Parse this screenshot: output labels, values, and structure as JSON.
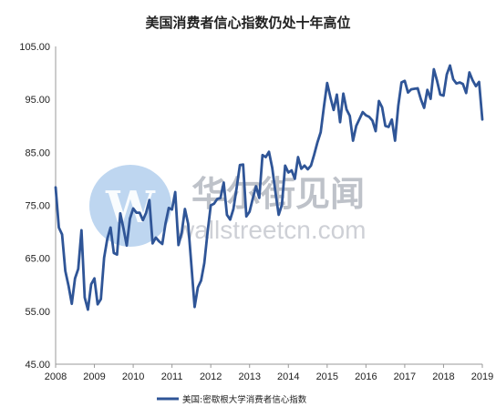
{
  "chart_data": {
    "type": "line",
    "title": "美国消费者信心指数仍处十年高位",
    "xlabel": "",
    "ylabel": "",
    "x_ticks": [
      "2008",
      "2009",
      "2010",
      "2011",
      "2012",
      "2013",
      "2014",
      "2015",
      "2016",
      "2017",
      "2018",
      "2019"
    ],
    "xlim": [
      2008,
      2019
    ],
    "y_ticks": [
      "105.00",
      "95.00",
      "85.00",
      "75.00",
      "65.00",
      "55.00",
      "45.00"
    ],
    "ylim": [
      45,
      105
    ],
    "grid": false,
    "legend_position": "bottom",
    "series": [
      {
        "name": "美国:密歇根大学消费者信心指数",
        "color": "#2f5597",
        "x": [
          "2008-01",
          "2008-02",
          "2008-03",
          "2008-04",
          "2008-05",
          "2008-06",
          "2008-07",
          "2008-08",
          "2008-09",
          "2008-10",
          "2008-11",
          "2008-12",
          "2009-01",
          "2009-02",
          "2009-03",
          "2009-04",
          "2009-05",
          "2009-06",
          "2009-07",
          "2009-08",
          "2009-09",
          "2009-10",
          "2009-11",
          "2009-12",
          "2010-01",
          "2010-02",
          "2010-03",
          "2010-04",
          "2010-05",
          "2010-06",
          "2010-07",
          "2010-08",
          "2010-09",
          "2010-10",
          "2010-11",
          "2010-12",
          "2011-01",
          "2011-02",
          "2011-03",
          "2011-04",
          "2011-05",
          "2011-06",
          "2011-07",
          "2011-08",
          "2011-09",
          "2011-10",
          "2011-11",
          "2011-12",
          "2012-01",
          "2012-02",
          "2012-03",
          "2012-04",
          "2012-05",
          "2012-06",
          "2012-07",
          "2012-08",
          "2012-09",
          "2012-10",
          "2012-11",
          "2012-12",
          "2013-01",
          "2013-02",
          "2013-03",
          "2013-04",
          "2013-05",
          "2013-06",
          "2013-07",
          "2013-08",
          "2013-09",
          "2013-10",
          "2013-11",
          "2013-12",
          "2014-01",
          "2014-02",
          "2014-03",
          "2014-04",
          "2014-05",
          "2014-06",
          "2014-07",
          "2014-08",
          "2014-09",
          "2014-10",
          "2014-11",
          "2014-12",
          "2015-01",
          "2015-02",
          "2015-03",
          "2015-04",
          "2015-05",
          "2015-06",
          "2015-07",
          "2015-08",
          "2015-09",
          "2015-10",
          "2015-11",
          "2015-12",
          "2016-01",
          "2016-02",
          "2016-03",
          "2016-04",
          "2016-05",
          "2016-06",
          "2016-07",
          "2016-08",
          "2016-09",
          "2016-10",
          "2016-11",
          "2016-12",
          "2017-01",
          "2017-02",
          "2017-03",
          "2017-04",
          "2017-05",
          "2017-06",
          "2017-07",
          "2017-08",
          "2017-09",
          "2017-10",
          "2017-11",
          "2017-12",
          "2018-01",
          "2018-02",
          "2018-03",
          "2018-04",
          "2018-05",
          "2018-06",
          "2018-07",
          "2018-08",
          "2018-09",
          "2018-10",
          "2018-11",
          "2018-12",
          "2019-01"
        ],
        "values": [
          78.4,
          70.8,
          69.5,
          62.6,
          59.8,
          56.4,
          61.2,
          63.0,
          70.3,
          57.6,
          55.3,
          60.1,
          61.2,
          56.3,
          57.3,
          65.1,
          68.7,
          70.8,
          66.0,
          65.7,
          73.5,
          70.6,
          67.4,
          72.5,
          74.4,
          73.6,
          73.6,
          72.2,
          73.6,
          76.0,
          67.8,
          68.9,
          68.2,
          67.7,
          71.6,
          74.5,
          74.2,
          77.5,
          67.5,
          69.8,
          74.3,
          71.5,
          63.7,
          55.8,
          59.5,
          60.8,
          64.1,
          69.9,
          75.0,
          75.3,
          76.2,
          76.4,
          79.3,
          73.2,
          72.3,
          74.3,
          78.3,
          82.6,
          82.7,
          72.9,
          73.8,
          76.3,
          78.6,
          76.4,
          84.5,
          84.1,
          85.1,
          82.1,
          77.5,
          73.2,
          75.1,
          82.5,
          81.2,
          81.6,
          80.0,
          84.1,
          81.9,
          82.5,
          81.8,
          82.5,
          84.6,
          86.9,
          88.8,
          93.6,
          98.1,
          95.4,
          93.0,
          95.9,
          90.7,
          96.1,
          93.1,
          91.9,
          87.2,
          90.0,
          91.3,
          92.6,
          92.0,
          91.7,
          91.0,
          89.0,
          94.7,
          93.5,
          90.0,
          89.8,
          91.2,
          87.2,
          93.8,
          98.2,
          98.5,
          96.3,
          96.9,
          97.0,
          97.1,
          95.0,
          93.4,
          96.8,
          95.1,
          100.7,
          98.5,
          95.9,
          95.7,
          99.7,
          101.4,
          98.8,
          98.0,
          98.2,
          97.9,
          96.2,
          100.1,
          98.6,
          97.5,
          98.3,
          91.2
        ]
      }
    ]
  },
  "legend": {
    "label": "美国:密歇根大学消费者信心指数"
  },
  "watermark": {
    "cn": "华尔街见闻",
    "en": "wallstreetcn.com"
  }
}
